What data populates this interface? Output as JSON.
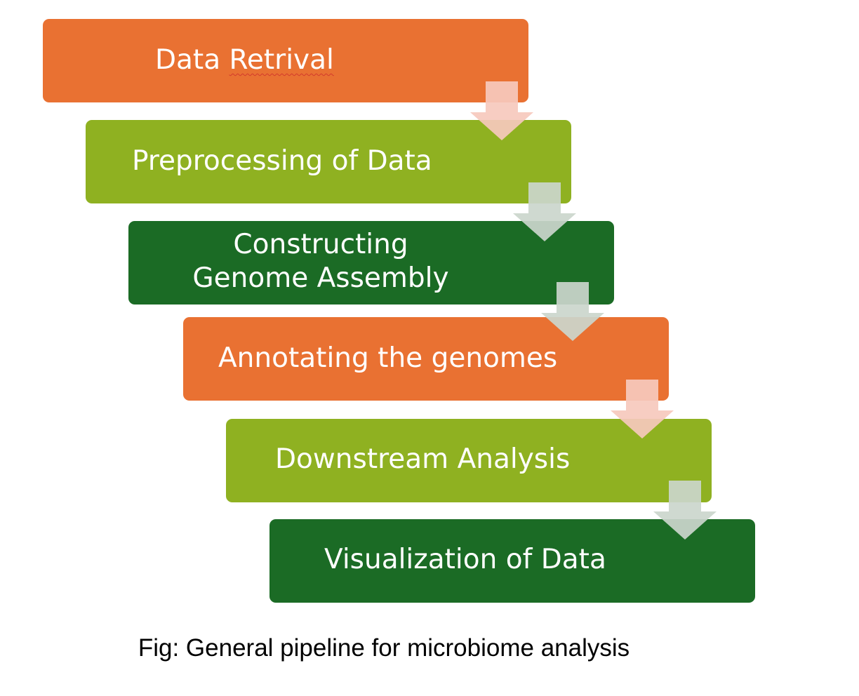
{
  "colors": {
    "orange": "#e97132",
    "light_green": "#8fb121",
    "dark_green": "#1b6b25",
    "arrow_pink": "#f6c9bd",
    "arrow_gray": "#cbd6cc"
  },
  "steps": [
    {
      "label_part1": "Data ",
      "label_part2": "Retrival"
    },
    {
      "label": "Preprocessing of Data"
    },
    {
      "label": "Constructing Genome Assembly"
    },
    {
      "label": "Annotating the genomes"
    },
    {
      "label": "Downstream Analysis"
    },
    {
      "label": "Visualization of Data"
    }
  ],
  "arrows": [
    {
      "icon": "down-arrow-icon",
      "color": "#f6c9bd"
    },
    {
      "icon": "down-arrow-icon",
      "color": "#cbd6cc"
    },
    {
      "icon": "down-arrow-icon",
      "color": "#cbd6cc"
    },
    {
      "icon": "down-arrow-icon",
      "color": "#f6c9bd"
    },
    {
      "icon": "down-arrow-icon",
      "color": "#cbd6cc"
    }
  ],
  "caption": "Fig: General pipeline for microbiome analysis"
}
